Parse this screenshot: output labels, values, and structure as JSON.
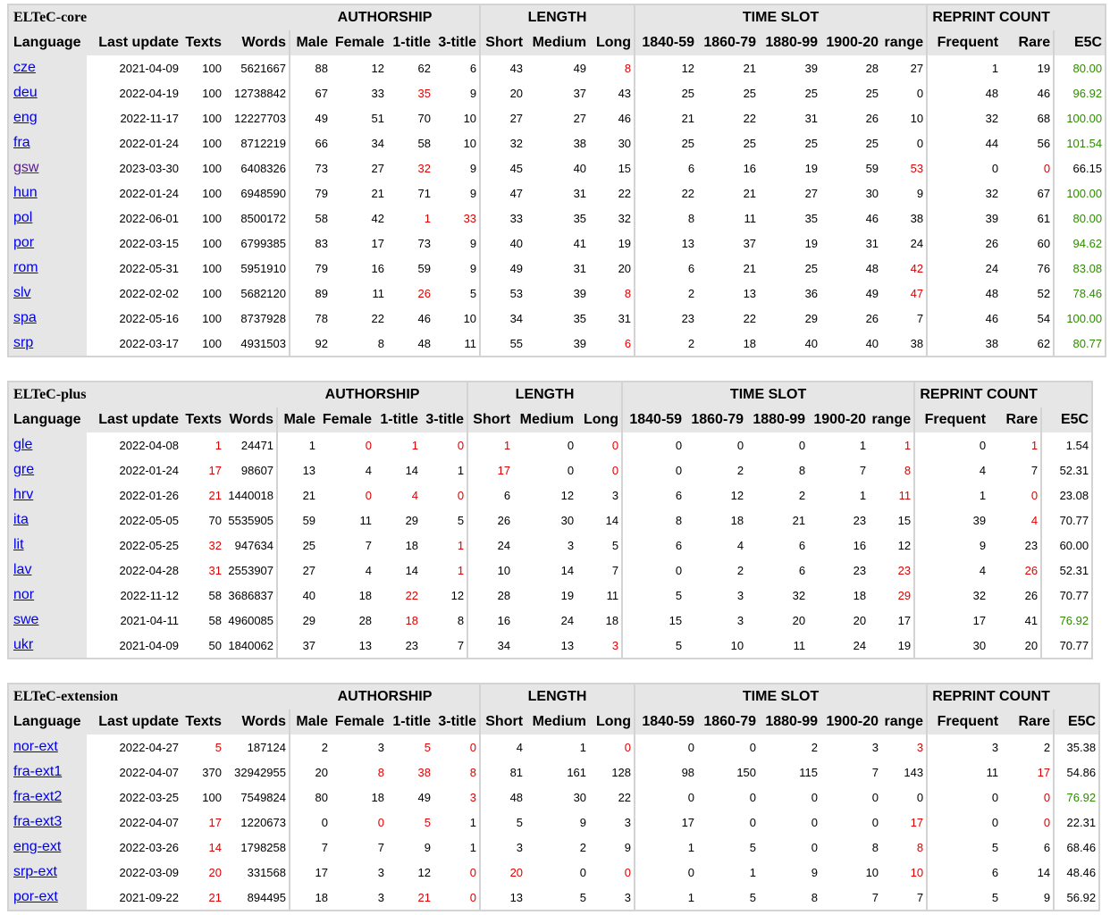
{
  "columns": [
    "Language",
    "Last update",
    "Texts",
    "Words",
    "Male",
    "Female",
    "1-title",
    "3-title",
    "Short",
    "Medium",
    "Long",
    "1840-59",
    "1860-79",
    "1880-99",
    "1900-20",
    "range",
    "Frequent",
    "Rare",
    "E5C"
  ],
  "groups": {
    "authorship": "AUTHORSHIP",
    "length": "LENGTH",
    "time_slot": "TIME SLOT",
    "reprint_count": "REPRINT COUNT"
  },
  "status_colors": {
    "warning": "#e00000",
    "good": "#2e8b00"
  },
  "tables": [
    {
      "title": "ELTeC-core",
      "rows": [
        {
          "lang": "cze",
          "update": "2021-04-09",
          "texts": "100",
          "words": "5621667",
          "male": "88",
          "female": "12",
          "t1": "62",
          "t3": "6",
          "short": "43",
          "medium": "49",
          "long": "8",
          "s1840": "12",
          "s1860": "21",
          "s1880": "39",
          "s1900": "28",
          "range": "27",
          "frequent": "1",
          "rare": "19",
          "e5c": "80.00",
          "warn": [
            "long"
          ],
          "good": [
            "e5c"
          ]
        },
        {
          "lang": "deu",
          "update": "2022-04-19",
          "texts": "100",
          "words": "12738842",
          "male": "67",
          "female": "33",
          "t1": "35",
          "t3": "9",
          "short": "20",
          "medium": "37",
          "long": "43",
          "s1840": "25",
          "s1860": "25",
          "s1880": "25",
          "s1900": "25",
          "range": "0",
          "frequent": "48",
          "rare": "46",
          "e5c": "96.92",
          "warn": [
            "t1"
          ],
          "good": [
            "e5c"
          ]
        },
        {
          "lang": "eng",
          "update": "2022-11-17",
          "texts": "100",
          "words": "12227703",
          "male": "49",
          "female": "51",
          "t1": "70",
          "t3": "10",
          "short": "27",
          "medium": "27",
          "long": "46",
          "s1840": "21",
          "s1860": "22",
          "s1880": "31",
          "s1900": "26",
          "range": "10",
          "frequent": "32",
          "rare": "68",
          "e5c": "100.00",
          "warn": [],
          "good": [
            "e5c"
          ]
        },
        {
          "lang": "fra",
          "update": "2022-01-24",
          "texts": "100",
          "words": "8712219",
          "male": "66",
          "female": "34",
          "t1": "58",
          "t3": "10",
          "short": "32",
          "medium": "38",
          "long": "30",
          "s1840": "25",
          "s1860": "25",
          "s1880": "25",
          "s1900": "25",
          "range": "0",
          "frequent": "44",
          "rare": "56",
          "e5c": "101.54",
          "warn": [],
          "good": [
            "e5c"
          ]
        },
        {
          "lang": "gsw",
          "update": "2023-03-30",
          "texts": "100",
          "words": "6408326",
          "male": "73",
          "female": "27",
          "t1": "32",
          "t3": "9",
          "short": "45",
          "medium": "40",
          "long": "15",
          "s1840": "6",
          "s1860": "16",
          "s1880": "19",
          "s1900": "59",
          "range": "53",
          "frequent": "0",
          "rare": "0",
          "e5c": "66.15",
          "warn": [
            "t1",
            "range",
            "rare"
          ],
          "good": [],
          "visited": true
        },
        {
          "lang": "hun",
          "update": "2022-01-24",
          "texts": "100",
          "words": "6948590",
          "male": "79",
          "female": "21",
          "t1": "71",
          "t3": "9",
          "short": "47",
          "medium": "31",
          "long": "22",
          "s1840": "22",
          "s1860": "21",
          "s1880": "27",
          "s1900": "30",
          "range": "9",
          "frequent": "32",
          "rare": "67",
          "e5c": "100.00",
          "warn": [],
          "good": [
            "e5c"
          ]
        },
        {
          "lang": "pol",
          "update": "2022-06-01",
          "texts": "100",
          "words": "8500172",
          "male": "58",
          "female": "42",
          "t1": "1",
          "t3": "33",
          "short": "33",
          "medium": "35",
          "long": "32",
          "s1840": "8",
          "s1860": "11",
          "s1880": "35",
          "s1900": "46",
          "range": "38",
          "frequent": "39",
          "rare": "61",
          "e5c": "80.00",
          "warn": [
            "t1",
            "t3"
          ],
          "good": [
            "e5c"
          ]
        },
        {
          "lang": "por",
          "update": "2022-03-15",
          "texts": "100",
          "words": "6799385",
          "male": "83",
          "female": "17",
          "t1": "73",
          "t3": "9",
          "short": "40",
          "medium": "41",
          "long": "19",
          "s1840": "13",
          "s1860": "37",
          "s1880": "19",
          "s1900": "31",
          "range": "24",
          "frequent": "26",
          "rare": "60",
          "e5c": "94.62",
          "warn": [],
          "good": [
            "e5c"
          ]
        },
        {
          "lang": "rom",
          "update": "2022-05-31",
          "texts": "100",
          "words": "5951910",
          "male": "79",
          "female": "16",
          "t1": "59",
          "t3": "9",
          "short": "49",
          "medium": "31",
          "long": "20",
          "s1840": "6",
          "s1860": "21",
          "s1880": "25",
          "s1900": "48",
          "range": "42",
          "frequent": "24",
          "rare": "76",
          "e5c": "83.08",
          "warn": [
            "range"
          ],
          "good": [
            "e5c"
          ]
        },
        {
          "lang": "slv",
          "update": "2022-02-02",
          "texts": "100",
          "words": "5682120",
          "male": "89",
          "female": "11",
          "t1": "26",
          "t3": "5",
          "short": "53",
          "medium": "39",
          "long": "8",
          "s1840": "2",
          "s1860": "13",
          "s1880": "36",
          "s1900": "49",
          "range": "47",
          "frequent": "48",
          "rare": "52",
          "e5c": "78.46",
          "warn": [
            "t1",
            "long",
            "range"
          ],
          "good": [
            "e5c"
          ]
        },
        {
          "lang": "spa",
          "update": "2022-05-16",
          "texts": "100",
          "words": "8737928",
          "male": "78",
          "female": "22",
          "t1": "46",
          "t3": "10",
          "short": "34",
          "medium": "35",
          "long": "31",
          "s1840": "23",
          "s1860": "22",
          "s1880": "29",
          "s1900": "26",
          "range": "7",
          "frequent": "46",
          "rare": "54",
          "e5c": "100.00",
          "warn": [],
          "good": [
            "e5c"
          ]
        },
        {
          "lang": "srp",
          "update": "2022-03-17",
          "texts": "100",
          "words": "4931503",
          "male": "92",
          "female": "8",
          "t1": "48",
          "t3": "11",
          "short": "55",
          "medium": "39",
          "long": "6",
          "s1840": "2",
          "s1860": "18",
          "s1880": "40",
          "s1900": "40",
          "range": "38",
          "frequent": "38",
          "rare": "62",
          "e5c": "80.77",
          "warn": [
            "long"
          ],
          "good": [
            "e5c"
          ]
        }
      ]
    },
    {
      "title": "ELTeC-plus",
      "rows": [
        {
          "lang": "gle",
          "update": "2022-04-08",
          "texts": "1",
          "words": "24471",
          "male": "1",
          "female": "0",
          "t1": "1",
          "t3": "0",
          "short": "1",
          "medium": "0",
          "long": "0",
          "s1840": "0",
          "s1860": "0",
          "s1880": "0",
          "s1900": "1",
          "range": "1",
          "frequent": "0",
          "rare": "1",
          "e5c": "1.54",
          "warn": [
            "texts",
            "female",
            "t1",
            "t3",
            "short",
            "long",
            "range",
            "rare"
          ],
          "good": []
        },
        {
          "lang": "gre",
          "update": "2022-01-24",
          "texts": "17",
          "words": "98607",
          "male": "13",
          "female": "4",
          "t1": "14",
          "t3": "1",
          "short": "17",
          "medium": "0",
          "long": "0",
          "s1840": "0",
          "s1860": "2",
          "s1880": "8",
          "s1900": "7",
          "range": "8",
          "frequent": "4",
          "rare": "7",
          "e5c": "52.31",
          "warn": [
            "texts",
            "short",
            "long",
            "range"
          ],
          "good": []
        },
        {
          "lang": "hrv",
          "update": "2022-01-26",
          "texts": "21",
          "words": "1440018",
          "male": "21",
          "female": "0",
          "t1": "4",
          "t3": "0",
          "short": "6",
          "medium": "12",
          "long": "3",
          "s1840": "6",
          "s1860": "12",
          "s1880": "2",
          "s1900": "1",
          "range": "11",
          "frequent": "1",
          "rare": "0",
          "e5c": "23.08",
          "warn": [
            "texts",
            "female",
            "t1",
            "t3",
            "range",
            "rare"
          ],
          "good": []
        },
        {
          "lang": "ita",
          "update": "2022-05-05",
          "texts": "70",
          "words": "5535905",
          "male": "59",
          "female": "11",
          "t1": "29",
          "t3": "5",
          "short": "26",
          "medium": "30",
          "long": "14",
          "s1840": "8",
          "s1860": "18",
          "s1880": "21",
          "s1900": "23",
          "range": "15",
          "frequent": "39",
          "rare": "4",
          "e5c": "70.77",
          "warn": [
            "rare"
          ],
          "good": []
        },
        {
          "lang": "lit",
          "update": "2022-05-25",
          "texts": "32",
          "words": "947634",
          "male": "25",
          "female": "7",
          "t1": "18",
          "t3": "1",
          "short": "24",
          "medium": "3",
          "long": "5",
          "s1840": "6",
          "s1860": "4",
          "s1880": "6",
          "s1900": "16",
          "range": "12",
          "frequent": "9",
          "rare": "23",
          "e5c": "60.00",
          "warn": [
            "texts",
            "t3"
          ],
          "good": []
        },
        {
          "lang": "lav",
          "update": "2022-04-28",
          "texts": "31",
          "words": "2553907",
          "male": "27",
          "female": "4",
          "t1": "14",
          "t3": "1",
          "short": "10",
          "medium": "14",
          "long": "7",
          "s1840": "0",
          "s1860": "2",
          "s1880": "6",
          "s1900": "23",
          "range": "23",
          "frequent": "4",
          "rare": "26",
          "e5c": "52.31",
          "warn": [
            "texts",
            "t3",
            "range",
            "rare"
          ],
          "good": []
        },
        {
          "lang": "nor",
          "update": "2022-11-12",
          "texts": "58",
          "words": "3686837",
          "male": "40",
          "female": "18",
          "t1": "22",
          "t3": "12",
          "short": "28",
          "medium": "19",
          "long": "11",
          "s1840": "5",
          "s1860": "3",
          "s1880": "32",
          "s1900": "18",
          "range": "29",
          "frequent": "32",
          "rare": "26",
          "e5c": "70.77",
          "warn": [
            "t1",
            "range"
          ],
          "good": []
        },
        {
          "lang": "swe",
          "update": "2021-04-11",
          "texts": "58",
          "words": "4960085",
          "male": "29",
          "female": "28",
          "t1": "18",
          "t3": "8",
          "short": "16",
          "medium": "24",
          "long": "18",
          "s1840": "15",
          "s1860": "3",
          "s1880": "20",
          "s1900": "20",
          "range": "17",
          "frequent": "17",
          "rare": "41",
          "e5c": "76.92",
          "warn": [
            "t1"
          ],
          "good": [
            "e5c"
          ]
        },
        {
          "lang": "ukr",
          "update": "2021-04-09",
          "texts": "50",
          "words": "1840062",
          "male": "37",
          "female": "13",
          "t1": "23",
          "t3": "7",
          "short": "34",
          "medium": "13",
          "long": "3",
          "s1840": "5",
          "s1860": "10",
          "s1880": "11",
          "s1900": "24",
          "range": "19",
          "frequent": "30",
          "rare": "20",
          "e5c": "70.77",
          "warn": [
            "long"
          ],
          "good": []
        }
      ]
    },
    {
      "title": "ELTeC-extension",
      "rows": [
        {
          "lang": "nor-ext",
          "update": "2022-04-27",
          "texts": "5",
          "words": "187124",
          "male": "2",
          "female": "3",
          "t1": "5",
          "t3": "0",
          "short": "4",
          "medium": "1",
          "long": "0",
          "s1840": "0",
          "s1860": "0",
          "s1880": "2",
          "s1900": "3",
          "range": "3",
          "frequent": "3",
          "rare": "2",
          "e5c": "35.38",
          "warn": [
            "texts",
            "t1",
            "t3",
            "long",
            "range"
          ],
          "good": []
        },
        {
          "lang": "fra-ext1",
          "update": "2022-04-07",
          "texts": "370",
          "words": "32942955",
          "male": "20",
          "female": "8",
          "t1": "38",
          "t3": "8",
          "short": "81",
          "medium": "161",
          "long": "128",
          "s1840": "98",
          "s1860": "150",
          "s1880": "115",
          "s1900": "7",
          "range": "143",
          "frequent": "11",
          "rare": "17",
          "e5c": "54.86",
          "warn": [
            "female",
            "t1",
            "t3",
            "rare"
          ],
          "good": []
        },
        {
          "lang": "fra-ext2",
          "update": "2022-03-25",
          "texts": "100",
          "words": "7549824",
          "male": "80",
          "female": "18",
          "t1": "49",
          "t3": "3",
          "short": "48",
          "medium": "30",
          "long": "22",
          "s1840": "0",
          "s1860": "0",
          "s1880": "0",
          "s1900": "0",
          "range": "0",
          "frequent": "0",
          "rare": "0",
          "e5c": "76.92",
          "warn": [
            "t3",
            "rare"
          ],
          "good": [
            "e5c"
          ]
        },
        {
          "lang": "fra-ext3",
          "update": "2022-04-07",
          "texts": "17",
          "words": "1220673",
          "male": "0",
          "female": "0",
          "t1": "5",
          "t3": "1",
          "short": "5",
          "medium": "9",
          "long": "3",
          "s1840": "17",
          "s1860": "0",
          "s1880": "0",
          "s1900": "0",
          "range": "17",
          "frequent": "0",
          "rare": "0",
          "e5c": "22.31",
          "warn": [
            "texts",
            "female",
            "t1",
            "range",
            "rare"
          ],
          "good": []
        },
        {
          "lang": "eng-ext",
          "update": "2022-03-26",
          "texts": "14",
          "words": "1798258",
          "male": "7",
          "female": "7",
          "t1": "9",
          "t3": "1",
          "short": "3",
          "medium": "2",
          "long": "9",
          "s1840": "1",
          "s1860": "5",
          "s1880": "0",
          "s1900": "8",
          "range": "8",
          "frequent": "5",
          "rare": "6",
          "e5c": "68.46",
          "warn": [
            "texts",
            "range"
          ],
          "good": []
        },
        {
          "lang": "srp-ext",
          "update": "2022-03-09",
          "texts": "20",
          "words": "331568",
          "male": "17",
          "female": "3",
          "t1": "12",
          "t3": "0",
          "short": "20",
          "medium": "0",
          "long": "0",
          "s1840": "0",
          "s1860": "1",
          "s1880": "9",
          "s1900": "10",
          "range": "10",
          "frequent": "6",
          "rare": "14",
          "e5c": "48.46",
          "warn": [
            "texts",
            "t3",
            "short",
            "long",
            "range"
          ],
          "good": []
        },
        {
          "lang": "por-ext",
          "update": "2021-09-22",
          "texts": "21",
          "words": "894495",
          "male": "18",
          "female": "3",
          "t1": "21",
          "t3": "0",
          "short": "13",
          "medium": "5",
          "long": "3",
          "s1840": "1",
          "s1860": "5",
          "s1880": "8",
          "s1900": "7",
          "range": "7",
          "frequent": "5",
          "rare": "9",
          "e5c": "56.92",
          "warn": [
            "texts",
            "t1",
            "t3"
          ],
          "good": []
        }
      ]
    }
  ]
}
